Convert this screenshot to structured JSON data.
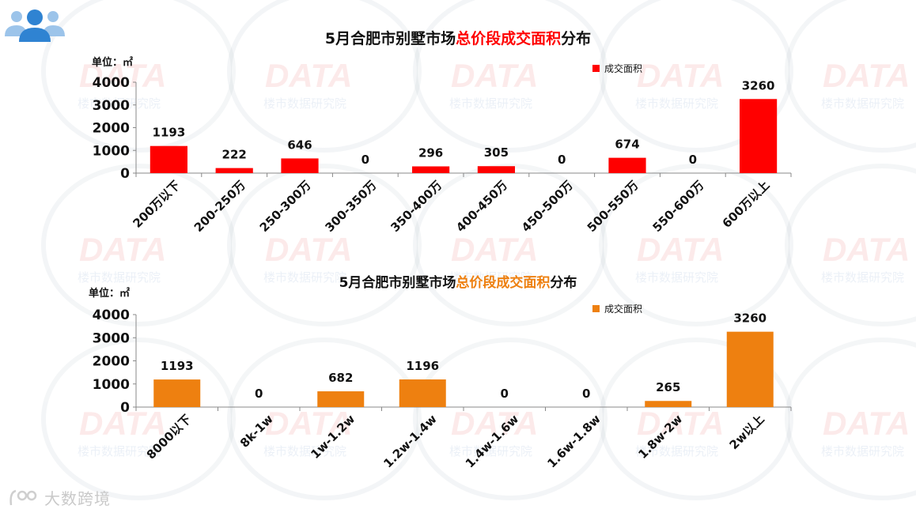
{
  "watermark": {
    "brand": "DATA",
    "sub": "楼市数据研究院"
  },
  "footer": {
    "text": "大数跨境"
  },
  "colors": {
    "red": "#ff0000",
    "orange": "#ee8010"
  },
  "chart_data": [
    {
      "type": "bar",
      "title_prefix": "5月合肥市别墅市场",
      "title_highlight": "总价段成交面积",
      "title_suffix": "分布",
      "unit": "单位：㎡",
      "legend": "成交面积",
      "legend_position": "top-right",
      "categories": [
        "200万以下",
        "200-250万",
        "250-300万",
        "300-350万",
        "350-400万",
        "400-450万",
        "450-500万",
        "500-550万",
        "550-600万",
        "600万以上"
      ],
      "series": [
        {
          "name": "成交面积",
          "values": [
            1193,
            222,
            646,
            0,
            296,
            305,
            0,
            674,
            0,
            3260
          ]
        }
      ],
      "yticks": [
        "0",
        "1000",
        "2000",
        "3000",
        "4000"
      ],
      "ylim": [
        0,
        4000
      ],
      "grid": false
    },
    {
      "type": "bar",
      "title_prefix": "5月合肥市别墅市场",
      "title_highlight": "总价段成交面积",
      "title_suffix": "分布",
      "unit": "单位：㎡",
      "legend": "成交面积",
      "legend_position": "top-right",
      "categories": [
        "8000以下",
        "8k-1w",
        "1w-1.2w",
        "1.2w-1.4w",
        "1.4w-1.6w",
        "1.6w-1.8w",
        "1.8w-2w",
        "2w以上"
      ],
      "series": [
        {
          "name": "成交面积",
          "values": [
            1193,
            0,
            682,
            1196,
            0,
            0,
            265,
            3260
          ]
        }
      ],
      "yticks": [
        "0",
        "1000",
        "2000",
        "3000",
        "4000"
      ],
      "ylim": [
        0,
        4000
      ],
      "grid": false
    }
  ]
}
